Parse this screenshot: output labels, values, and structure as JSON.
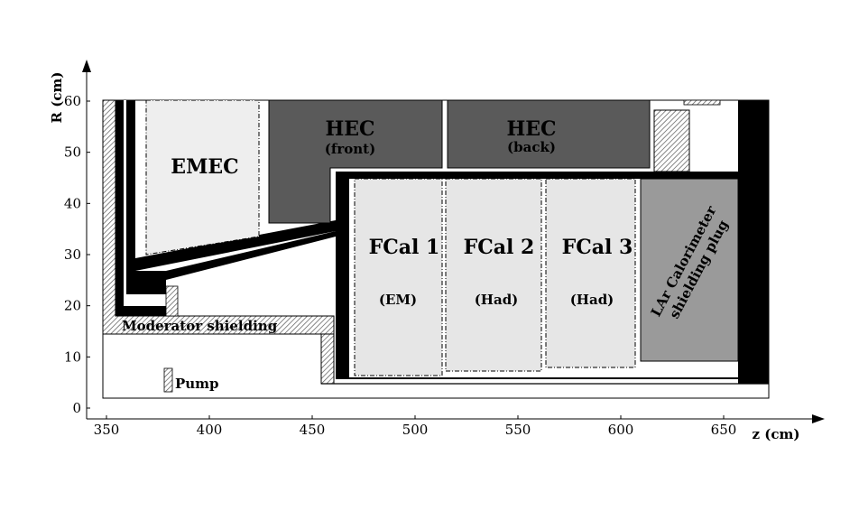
{
  "axes": {
    "x_label": "z (cm)",
    "y_label": "R (cm)",
    "x_ticks": [
      "350",
      "400",
      "450",
      "500",
      "550",
      "600",
      "650"
    ],
    "y_ticks": [
      "0",
      "10",
      "20",
      "30",
      "40",
      "50",
      "60"
    ]
  },
  "regions": {
    "emec": "EMEC",
    "hec_front_title": "HEC",
    "hec_front_sub": "(front)",
    "hec_back_title": "HEC",
    "hec_back_sub": "(back)",
    "fcal1_title": "FCal 1",
    "fcal1_sub": "(EM)",
    "fcal2_title": "FCal 2",
    "fcal2_sub": "(Had)",
    "fcal3_title": "FCal 3",
    "fcal3_sub": "(Had)",
    "plug_line1": "LAr Calorimeter",
    "plug_line2": "shielding plug",
    "moderator": "Moderator shielding",
    "pump": "Pump"
  },
  "colors": {
    "emec_fill": "#eeeeee",
    "hec_fill": "#5a5a5a",
    "fcal_fill": "#e6e6e6",
    "plug_fill": "#9a9a9a",
    "shield": "#000000"
  }
}
